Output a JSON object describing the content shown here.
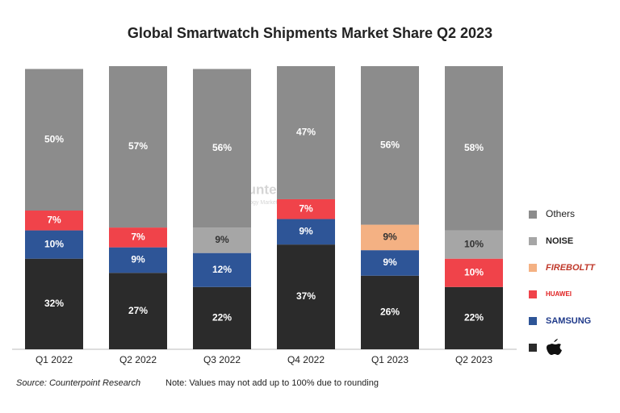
{
  "chart_data": {
    "type": "stacked_bar",
    "title": "Global Smartwatch Shipments Market Share Q2 2023",
    "categories": [
      "Q1 2022",
      "Q2 2022",
      "Q3 2022",
      "Q4 2022",
      "Q1 2023",
      "Q2 2023"
    ],
    "ylim": [
      0,
      100
    ],
    "series": [
      {
        "name": null,
        "color": "#2b2b2b",
        "values": [
          32,
          27,
          22,
          37,
          26,
          22
        ],
        "value_labels": [
          "32%",
          "27%",
          "22%",
          "37%",
          "26%",
          "22%"
        ]
      },
      {
        "name": "SAMSUNG",
        "color": "#2e5597",
        "values": [
          10,
          9,
          12,
          9,
          9,
          null
        ],
        "value_labels": [
          "10%",
          "9%",
          "12%",
          "9%",
          "9%",
          null
        ]
      },
      {
        "name": "HUAWEI",
        "color": "#f0434a",
        "values": [
          7,
          7,
          null,
          7,
          null,
          10
        ],
        "value_labels": [
          "7%",
          "7%",
          null,
          "7%",
          null,
          "10%"
        ]
      },
      {
        "name": "FIREBOLTT",
        "color": "#f4b183",
        "values": [
          null,
          null,
          null,
          null,
          9,
          null
        ],
        "value_labels": [
          null,
          null,
          null,
          null,
          "9%",
          null
        ]
      },
      {
        "name": "NOISE",
        "color": "#a6a6a6",
        "values": [
          null,
          null,
          9,
          null,
          null,
          10
        ],
        "value_labels": [
          null,
          null,
          "9%",
          null,
          null,
          "10%"
        ]
      },
      {
        "name": "Others",
        "color": "#8c8c8c",
        "values": [
          50,
          57,
          56,
          47,
          56,
          58
        ],
        "value_labels": [
          "50%",
          "57%",
          "56%",
          "47%",
          "56%",
          "58%"
        ]
      }
    ],
    "watermark": "Counterpoint",
    "watermark_subtitle": "Technology Market Research",
    "source": "Source: Counterpoint Research",
    "note": "Note: Values may not add up to 100% due to rounding"
  }
}
